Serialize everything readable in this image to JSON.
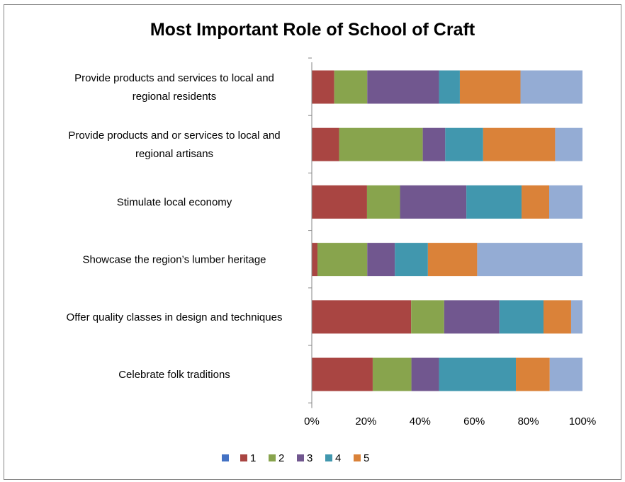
{
  "chart_data": {
    "type": "bar",
    "orientation": "horizontal",
    "stacked": "percent",
    "title": "Most Important Role of School of Craft",
    "categories": [
      [
        "Provide products and services to local and",
        "regional residents"
      ],
      [
        "Provide products and or services to local and",
        "regional artisans"
      ],
      [
        "Stimulate local economy"
      ],
      [
        "Showcase the region’s lumber heritage"
      ],
      [
        "Offer quality classes in design and techniques"
      ],
      [
        "Celebrate folk traditions"
      ]
    ],
    "series": [
      {
        "name": "",
        "color": "#4472C4",
        "values": [
          0,
          0,
          0,
          0,
          0,
          0
        ]
      },
      {
        "name": "1",
        "color": "#A94542",
        "values": [
          8.3,
          10.1,
          20.4,
          2.1,
          36.7,
          22.5
        ]
      },
      {
        "name": "2",
        "color": "#88A44D",
        "values": [
          12.2,
          30.9,
          12.2,
          18.4,
          12.2,
          14.3
        ]
      },
      {
        "name": "3",
        "color": "#71578F",
        "values": [
          26.5,
          8.3,
          24.5,
          10.2,
          20.4,
          10.2
        ]
      },
      {
        "name": "4",
        "color": "#4197AE",
        "values": [
          7.7,
          14.0,
          20.4,
          12.2,
          16.3,
          28.4
        ]
      },
      {
        "name": "5",
        "color": "#DA8239",
        "values": [
          22.4,
          26.6,
          10.2,
          18.2,
          10.2,
          12.5
        ]
      },
      {
        "name": "",
        "color": "#94ACD4",
        "values": [
          22.9,
          10.1,
          12.3,
          38.9,
          4.2,
          12.1
        ]
      }
    ],
    "xlim": [
      0,
      100
    ],
    "xticks": [
      "0%",
      "20%",
      "40%",
      "60%",
      "80%",
      "100%"
    ],
    "grid": false,
    "legend_position": "bottom"
  }
}
